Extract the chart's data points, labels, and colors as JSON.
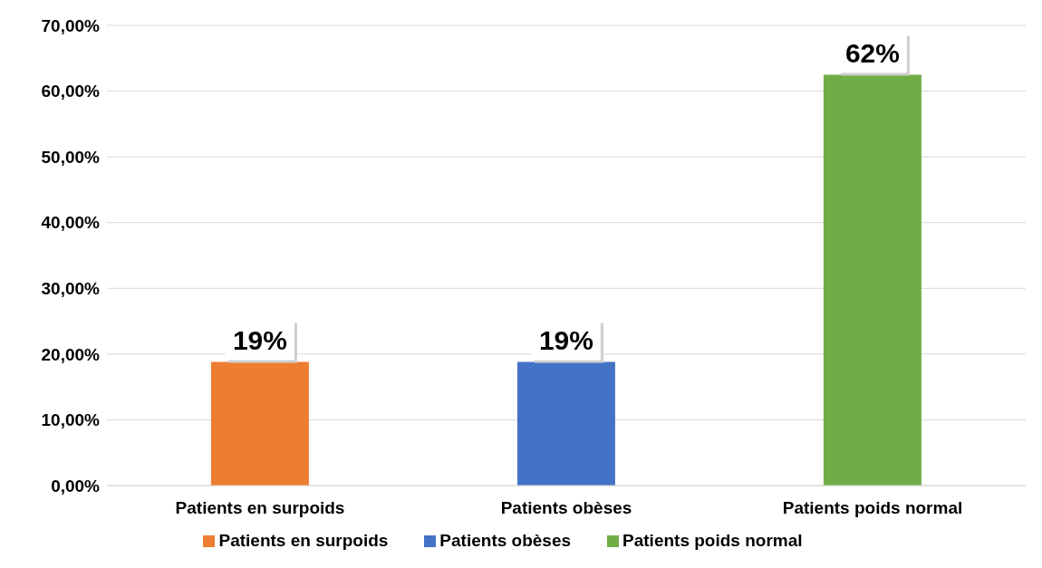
{
  "chart_data": {
    "type": "bar",
    "categories": [
      "Patients en surpoids",
      "Patients obèses",
      "Patients poids normal"
    ],
    "stacked": true,
    "series": [
      {
        "name": "Patients en surpoids",
        "color": "#ed7d31",
        "values": [
          18.8,
          null,
          null
        ],
        "value_labels": [
          "19%",
          null,
          null
        ]
      },
      {
        "name": "Patients obèses",
        "color": "#4472c4",
        "values": [
          null,
          18.8,
          null
        ],
        "value_labels": [
          null,
          "19%",
          null
        ]
      },
      {
        "name": "Patients poids normal",
        "color": "#70ad47",
        "values": [
          null,
          null,
          62.5
        ],
        "value_labels": [
          null,
          null,
          "62%"
        ]
      }
    ],
    "ylim": [
      0,
      70
    ],
    "yticks": [
      {
        "value": 0,
        "label": "0,00%"
      },
      {
        "value": 10,
        "label": "10,00%"
      },
      {
        "value": 20,
        "label": "20,00%"
      },
      {
        "value": 30,
        "label": "30,00%"
      },
      {
        "value": 40,
        "label": "40,00%"
      },
      {
        "value": 50,
        "label": "50,00%"
      },
      {
        "value": 60,
        "label": "60,00%"
      },
      {
        "value": 70,
        "label": "70,00%"
      }
    ],
    "grid": "y",
    "legend": "bottom"
  }
}
